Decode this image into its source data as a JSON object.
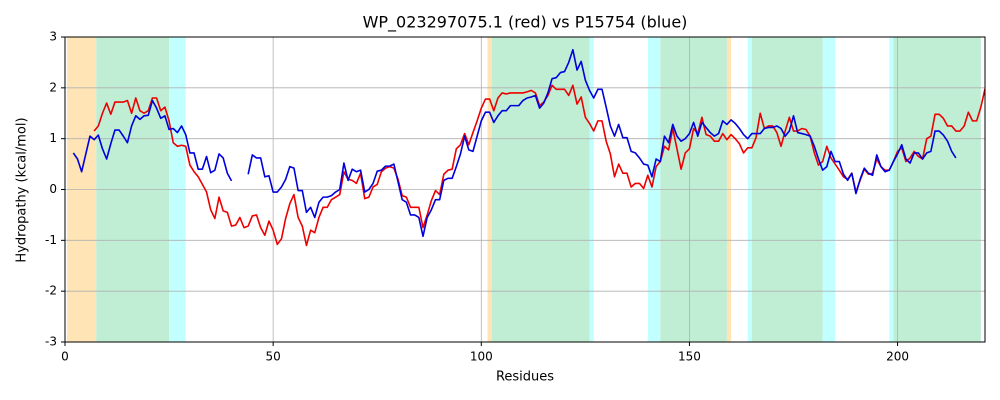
{
  "chart_data": {
    "type": "line",
    "title": "WP_023297075.1 (red) vs P15754 (blue)",
    "x_label": "Residues",
    "y_label": "Hydropathy (kcal/mol)",
    "xlim": [
      0,
      221
    ],
    "ylim": [
      -3,
      3
    ],
    "xticks": [
      0,
      50,
      100,
      150,
      200
    ],
    "yticks": [
      -3,
      -2,
      -1,
      0,
      1,
      2,
      3
    ],
    "grid": true,
    "regions": [
      {
        "range": [
          0.5,
          7.5
        ],
        "color": "#ffe4b5"
      },
      {
        "range": [
          7.5,
          25
        ],
        "color": "#bfeed5"
      },
      {
        "range": [
          25,
          29
        ],
        "color": "#c2ffff"
      },
      {
        "range": [
          101.5,
          102.5
        ],
        "color": "#ffe4b5"
      },
      {
        "range": [
          102.5,
          126
        ],
        "color": "#bfeed5"
      },
      {
        "range": [
          126,
          127
        ],
        "color": "#c2ffff"
      },
      {
        "range": [
          140,
          143
        ],
        "color": "#c2ffff"
      },
      {
        "range": [
          143,
          159
        ],
        "color": "#bfeed5"
      },
      {
        "range": [
          159,
          160
        ],
        "color": "#ffe4b5"
      },
      {
        "range": [
          164,
          165
        ],
        "color": "#c2ffff"
      },
      {
        "range": [
          165,
          182
        ],
        "color": "#bfeed5"
      },
      {
        "range": [
          182,
          185
        ],
        "color": "#c2ffff"
      },
      {
        "range": [
          198,
          199
        ],
        "color": "#c2ffff"
      },
      {
        "range": [
          199,
          220
        ],
        "color": "#bfeed5"
      }
    ],
    "series": [
      {
        "color": "#ee0000",
        "x": [
          7,
          8,
          9,
          10,
          11,
          12,
          13,
          14,
          15,
          16,
          17,
          18,
          19,
          20,
          21,
          22,
          23,
          24,
          25,
          26,
          27,
          28,
          29,
          30,
          31,
          32,
          33,
          34,
          35,
          36,
          37,
          38,
          39,
          40,
          41,
          42,
          43,
          44,
          45,
          46,
          47,
          48,
          49,
          50,
          51,
          52,
          53,
          54,
          55,
          56,
          57,
          58,
          59,
          60,
          61,
          62,
          63,
          64,
          65,
          66,
          67,
          68,
          69,
          70,
          71,
          72,
          73,
          74,
          75,
          76,
          77,
          78,
          79,
          80,
          81,
          82,
          83,
          84,
          85,
          86,
          87,
          88,
          89,
          90,
          91,
          92,
          93,
          94,
          95,
          96,
          97,
          98,
          99,
          100,
          101,
          102,
          103,
          104,
          105,
          106,
          107,
          108,
          109,
          110,
          111,
          112,
          113,
          114,
          115,
          116,
          117,
          118,
          119,
          120,
          121,
          122,
          123,
          124,
          125,
          126,
          127,
          128,
          129,
          130,
          131,
          132,
          133,
          134,
          135,
          136,
          137,
          138,
          139,
          140,
          141,
          142,
          143,
          144,
          145,
          146,
          147,
          148,
          149,
          150,
          151,
          152,
          153,
          154,
          155,
          156,
          157,
          158,
          159,
          160,
          161,
          162,
          163,
          164,
          165,
          166,
          167,
          168,
          169,
          170,
          171,
          172,
          173,
          174,
          175,
          176,
          177,
          178,
          179,
          180,
          181,
          182,
          183,
          184,
          185,
          186,
          187,
          188,
          189,
          190,
          191,
          192,
          193,
          194,
          195,
          196,
          197,
          198,
          199,
          200,
          201,
          202,
          203,
          204,
          205,
          206,
          207,
          208,
          209,
          210,
          211,
          212,
          213,
          214,
          215,
          216,
          217,
          218,
          219,
          220,
          221
        ],
        "values": [
          1.15,
          1.25,
          1.5,
          1.7,
          1.48,
          1.72,
          1.72,
          1.72,
          1.75,
          1.5,
          1.8,
          1.55,
          1.5,
          1.55,
          1.8,
          1.8,
          1.55,
          1.62,
          1.35,
          0.92,
          0.85,
          0.87,
          0.85,
          0.48,
          0.35,
          0.25,
          0.1,
          -0.05,
          -0.4,
          -0.57,
          -0.15,
          -0.42,
          -0.45,
          -0.72,
          -0.7,
          -0.55,
          -0.75,
          -0.72,
          -0.52,
          -0.5,
          -0.75,
          -0.9,
          -0.62,
          -0.8,
          -1.08,
          -0.97,
          -0.57,
          -0.28,
          -0.1,
          -0.55,
          -0.72,
          -1.1,
          -0.8,
          -0.85,
          -0.55,
          -0.35,
          -0.35,
          -0.2,
          -0.15,
          -0.1,
          0.35,
          0.2,
          0.18,
          0.12,
          0.32,
          -0.18,
          -0.15,
          0.05,
          0.1,
          0.35,
          0.42,
          0.45,
          0.42,
          0.2,
          -0.12,
          -0.15,
          -0.35,
          -0.35,
          -0.35,
          -0.75,
          -0.5,
          -0.22,
          -0.02,
          -0.1,
          0.3,
          0.38,
          0.4,
          0.8,
          0.88,
          1.1,
          0.88,
          1.12,
          1.35,
          1.6,
          1.78,
          1.78,
          1.55,
          1.8,
          1.9,
          1.88,
          1.9,
          1.9,
          1.9,
          1.9,
          1.92,
          1.95,
          1.9,
          1.65,
          1.72,
          1.85,
          2.05,
          1.97,
          1.97,
          1.97,
          1.85,
          2.05,
          1.68,
          1.82,
          1.42,
          1.3,
          1.15,
          1.35,
          1.35,
          0.95,
          0.7,
          0.25,
          0.5,
          0.32,
          0.32,
          0.05,
          0.12,
          0.12,
          0.02,
          0.28,
          0.05,
          0.45,
          0.55,
          0.85,
          0.78,
          1.2,
          0.8,
          0.4,
          0.72,
          0.8,
          1.2,
          1.1,
          1.42,
          1.08,
          1.05,
          0.95,
          0.95,
          1.1,
          0.98,
          1.08,
          1.0,
          0.9,
          0.72,
          0.82,
          0.82,
          1.02,
          1.5,
          1.2,
          1.25,
          1.25,
          1.12,
          0.85,
          1.15,
          1.42,
          1.15,
          1.15,
          1.2,
          1.18,
          1.05,
          0.72,
          0.48,
          0.55,
          0.85,
          0.62,
          0.5,
          0.38,
          0.25,
          0.2,
          0.32,
          -0.05,
          0.18,
          0.4,
          0.3,
          0.32,
          0.6,
          0.45,
          0.38,
          0.38,
          0.55,
          0.75,
          0.82,
          0.55,
          0.62,
          0.75,
          0.65,
          0.6,
          1.0,
          1.05,
          1.48,
          1.48,
          1.4,
          1.25,
          1.25,
          1.15,
          1.15,
          1.25,
          1.52,
          1.35,
          1.35,
          1.62,
          1.98
        ]
      },
      {
        "color": "#0000dd",
        "x": [
          2,
          3,
          4,
          5,
          6,
          7,
          8,
          9,
          10,
          11,
          12,
          13,
          14,
          15,
          16,
          17,
          18,
          19,
          20,
          21,
          22,
          23,
          24,
          25,
          26,
          27,
          28,
          29,
          30,
          31,
          32,
          33,
          34,
          35,
          36,
          37,
          38,
          39,
          40,
          41,
          42,
          43,
          44,
          45,
          46,
          47,
          48,
          49,
          50,
          51,
          52,
          53,
          54,
          55,
          56,
          57,
          58,
          59,
          60,
          61,
          62,
          63,
          64,
          65,
          66,
          67,
          68,
          69,
          70,
          71,
          72,
          73,
          74,
          75,
          76,
          77,
          78,
          79,
          80,
          81,
          82,
          83,
          84,
          85,
          86,
          87,
          88,
          89,
          90,
          91,
          92,
          93,
          94,
          95,
          96,
          97,
          98,
          99,
          100,
          101,
          102,
          103,
          104,
          105,
          106,
          107,
          108,
          109,
          110,
          111,
          112,
          113,
          114,
          115,
          116,
          117,
          118,
          119,
          120,
          121,
          122,
          123,
          124,
          125,
          126,
          127,
          128,
          129,
          130,
          131,
          132,
          133,
          134,
          135,
          136,
          137,
          138,
          139,
          140,
          141,
          142,
          143,
          144,
          145,
          146,
          147,
          148,
          149,
          150,
          151,
          152,
          153,
          154,
          155,
          156,
          157,
          158,
          159,
          160,
          161,
          162,
          163,
          164,
          165,
          166,
          167,
          168,
          169,
          170,
          171,
          172,
          173,
          174,
          175,
          176,
          177,
          178,
          179,
          180,
          181,
          182,
          183,
          184,
          185,
          186,
          187,
          188,
          189,
          190,
          191,
          192,
          193,
          194,
          195,
          196,
          197,
          198,
          199,
          200,
          201,
          202,
          203,
          204,
          205,
          206,
          207,
          208,
          209,
          210,
          211,
          212,
          213,
          214
        ],
        "values": [
          0.72,
          0.6,
          0.35,
          0.7,
          1.05,
          0.98,
          1.07,
          0.8,
          0.6,
          0.9,
          1.17,
          1.17,
          1.05,
          0.92,
          1.25,
          1.45,
          1.38,
          1.45,
          1.46,
          1.75,
          1.6,
          1.4,
          1.45,
          1.18,
          1.2,
          1.12,
          1.25,
          1.08,
          0.72,
          0.72,
          0.4,
          0.4,
          0.65,
          0.33,
          0.38,
          0.7,
          0.62,
          0.32,
          0.17,
          null,
          null,
          null,
          0.3,
          0.68,
          0.62,
          0.62,
          0.25,
          0.27,
          -0.05,
          -0.05,
          0.05,
          0.2,
          0.45,
          0.42,
          -0.02,
          -0.02,
          -0.45,
          -0.35,
          -0.55,
          -0.25,
          -0.15,
          -0.15,
          -0.12,
          -0.05,
          0.0,
          0.52,
          0.18,
          0.4,
          0.35,
          0.38,
          -0.05,
          0.0,
          0.12,
          0.36,
          0.38,
          0.46,
          0.46,
          0.5,
          0.15,
          -0.2,
          -0.25,
          -0.5,
          -0.5,
          -0.55,
          -0.92,
          -0.55,
          -0.4,
          -0.2,
          -0.2,
          0.18,
          0.22,
          0.22,
          0.45,
          0.7,
          1.05,
          0.78,
          0.75,
          1.05,
          1.35,
          1.52,
          1.52,
          1.32,
          1.45,
          1.55,
          1.55,
          1.65,
          1.65,
          1.65,
          1.75,
          1.8,
          1.82,
          1.85,
          1.6,
          1.7,
          1.9,
          2.18,
          2.2,
          2.3,
          2.32,
          2.5,
          2.75,
          2.35,
          2.52,
          2.15,
          1.95,
          1.8,
          1.97,
          1.97,
          1.62,
          1.25,
          1.05,
          1.28,
          1.02,
          1.02,
          0.75,
          0.72,
          0.62,
          0.5,
          0.48,
          0.25,
          0.6,
          0.55,
          1.05,
          0.92,
          1.28,
          1.05,
          0.95,
          1.0,
          1.1,
          1.32,
          1.05,
          1.32,
          1.22,
          1.12,
          1.05,
          1.1,
          1.35,
          1.28,
          1.37,
          1.3,
          1.2,
          1.08,
          1.0,
          1.1,
          1.1,
          1.1,
          1.2,
          1.22,
          1.22,
          1.25,
          1.2,
          1.05,
          1.15,
          1.45,
          1.12,
          1.1,
          1.08,
          1.05,
          0.85,
          0.6,
          0.38,
          0.45,
          0.75,
          0.55,
          0.55,
          0.3,
          0.18,
          0.32,
          -0.08,
          0.2,
          0.42,
          0.32,
          0.28,
          0.68,
          0.45,
          0.35,
          0.38,
          0.55,
          0.7,
          0.88,
          0.6,
          0.52,
          0.72,
          0.72,
          0.6,
          0.72,
          0.75,
          1.15,
          1.15,
          1.07,
          0.95,
          0.75,
          0.62
        ]
      }
    ]
  }
}
